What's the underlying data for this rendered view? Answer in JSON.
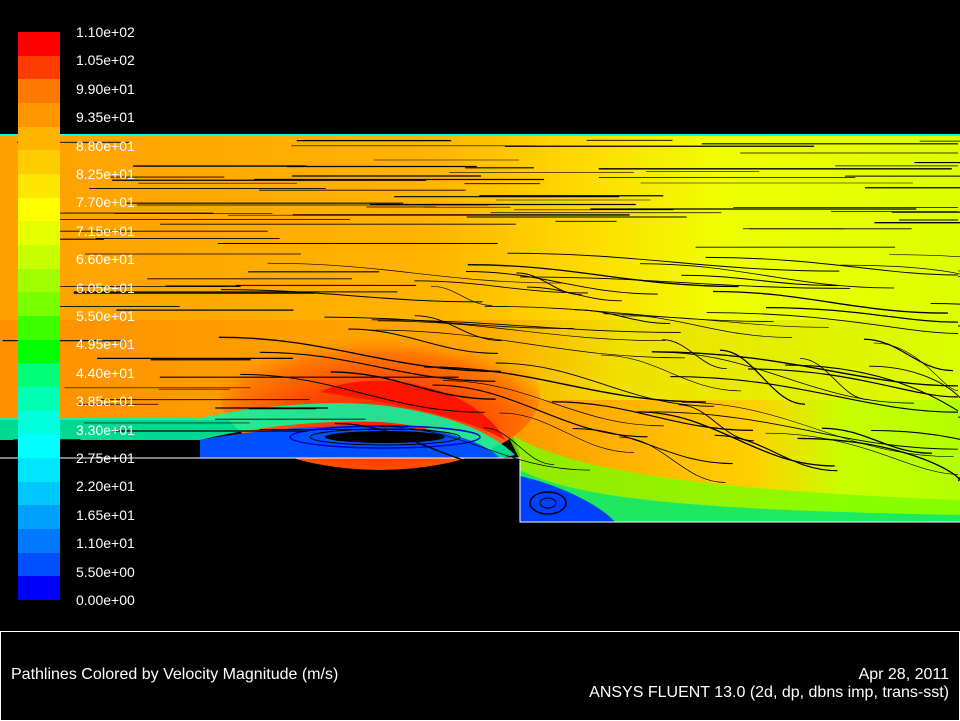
{
  "legend": {
    "title_hidden": "",
    "colors": [
      "#ff0000",
      "#ff3c00",
      "#ff7800",
      "#ff9600",
      "#ffb400",
      "#ffcd00",
      "#ffe600",
      "#ffff00",
      "#e6ff00",
      "#c8ff00",
      "#a0ff00",
      "#78ff00",
      "#3cff00",
      "#00ff00",
      "#00ff78",
      "#00ffb4",
      "#00ffdc",
      "#00ffff",
      "#00e6ff",
      "#00c8ff",
      "#00a0ff",
      "#0078ff",
      "#0050ff",
      "#0000ff"
    ],
    "ticks": [
      "1.10e+02",
      "1.05e+02",
      "9.90e+01",
      "9.35e+01",
      "8.80e+01",
      "8.25e+01",
      "7.70e+01",
      "7.15e+01",
      "6.60e+01",
      "6.05e+01",
      "5.50e+01",
      "4.95e+01",
      "4.40e+01",
      "3.85e+01",
      "3.30e+01",
      "2.75e+01",
      "2.20e+01",
      "1.65e+01",
      "1.10e+01",
      "5.50e+00",
      "0.00e+00"
    ]
  },
  "footer": {
    "title": "Pathlines Colored by Velocity Magnitude (m/s)",
    "date": "Apr 28, 2011",
    "solver": "ANSYS FLUENT 13.0 (2d, dp, dbns imp, trans-sst)"
  }
}
